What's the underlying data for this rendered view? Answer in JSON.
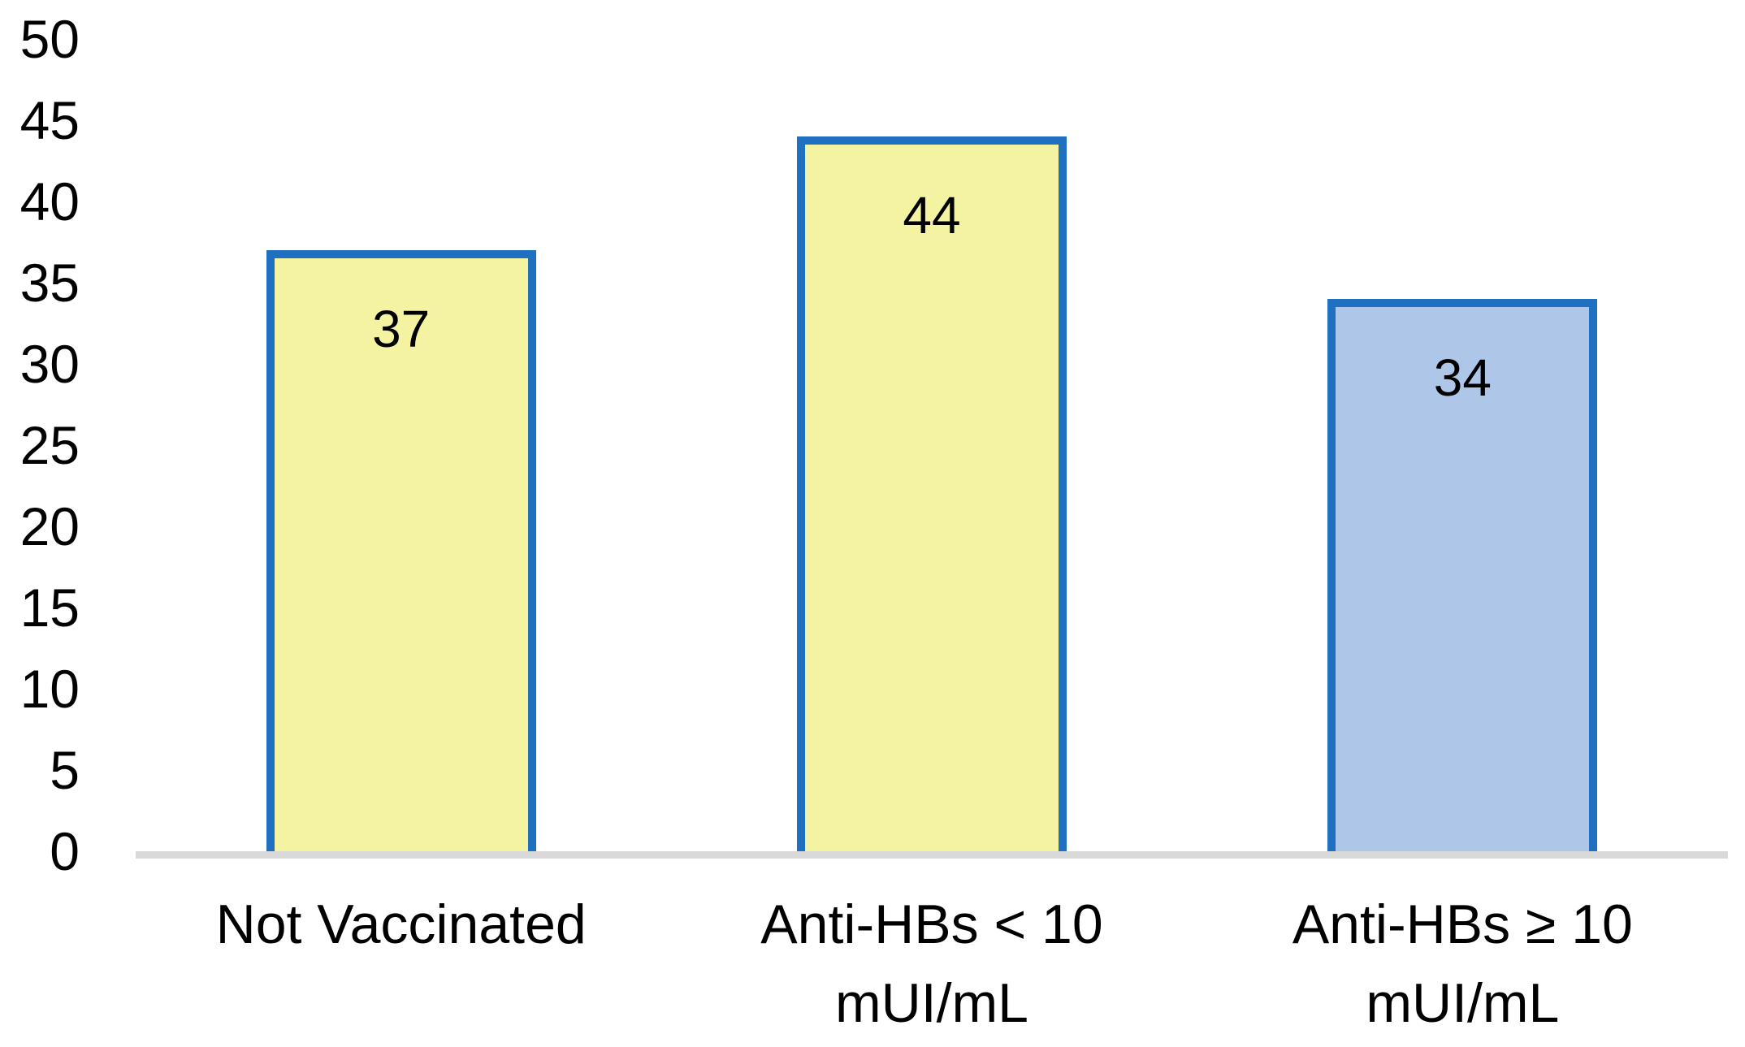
{
  "chart_data": {
    "type": "bar",
    "title": "",
    "xlabel": "",
    "ylabel": "",
    "categories": [
      "Not Vaccinated",
      "Anti-HBs < 10 mUI/mL",
      "Anti-HBs ≥ 10 mUI/mL"
    ],
    "category_lines": [
      [
        "Not Vaccinated"
      ],
      [
        "Anti-HBs < 10",
        "mUI/mL"
      ],
      [
        "Anti-HBs ≥ 10",
        "mUI/mL"
      ]
    ],
    "values": [
      37,
      44,
      34
    ],
    "data_labels": [
      "37",
      "44",
      "34"
    ],
    "y_ticks": [
      0,
      5,
      10,
      15,
      20,
      25,
      30,
      35,
      40,
      45,
      50
    ],
    "ylim": [
      0,
      50
    ],
    "grid": false,
    "legend_position": "none",
    "colors": {
      "bar_fills": [
        "#F3F3A2",
        "#F3F3A2",
        "#AEC7E8"
      ],
      "bar_border": "#1F70C1",
      "axis_line": "#D9D9D9",
      "text": "#000000"
    }
  }
}
